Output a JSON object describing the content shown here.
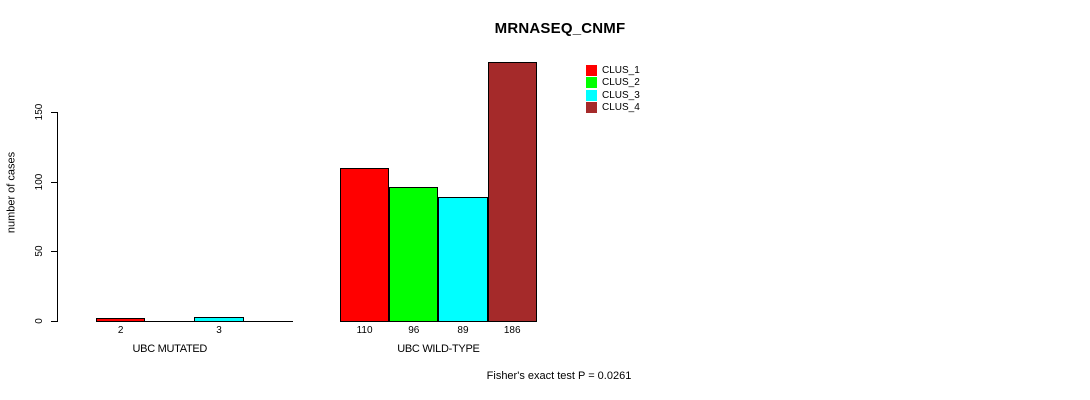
{
  "chart_data": {
    "type": "bar",
    "title": "MRNASEQ_CNMF",
    "ylabel": "number of cases",
    "xlabel": "",
    "ylim": [
      0,
      150
    ],
    "yticks": [
      0,
      50,
      100,
      150
    ],
    "grid": false,
    "legend_position": "top-right",
    "categories": [
      "UBC MUTATED",
      "UBC WILD-TYPE"
    ],
    "series": [
      {
        "name": "CLUS_1",
        "color": "#ff0000",
        "values": [
          2,
          110
        ]
      },
      {
        "name": "CLUS_2",
        "color": "#00ff00",
        "values": [
          null,
          96
        ]
      },
      {
        "name": "CLUS_3",
        "color": "#00ffff",
        "values": [
          3,
          89
        ]
      },
      {
        "name": "CLUS_4",
        "color": "#a52a2a",
        "values": [
          null,
          186
        ]
      }
    ],
    "bar_value_labels": {
      "UBC MUTATED": [
        "2",
        "3"
      ],
      "UBC WILD-TYPE": [
        "110",
        "96",
        "89",
        "186"
      ]
    },
    "annotation": "Fisher's exact test P = 0.0261",
    "axis_color": "#000000",
    "bar_border_color": "#000000"
  }
}
